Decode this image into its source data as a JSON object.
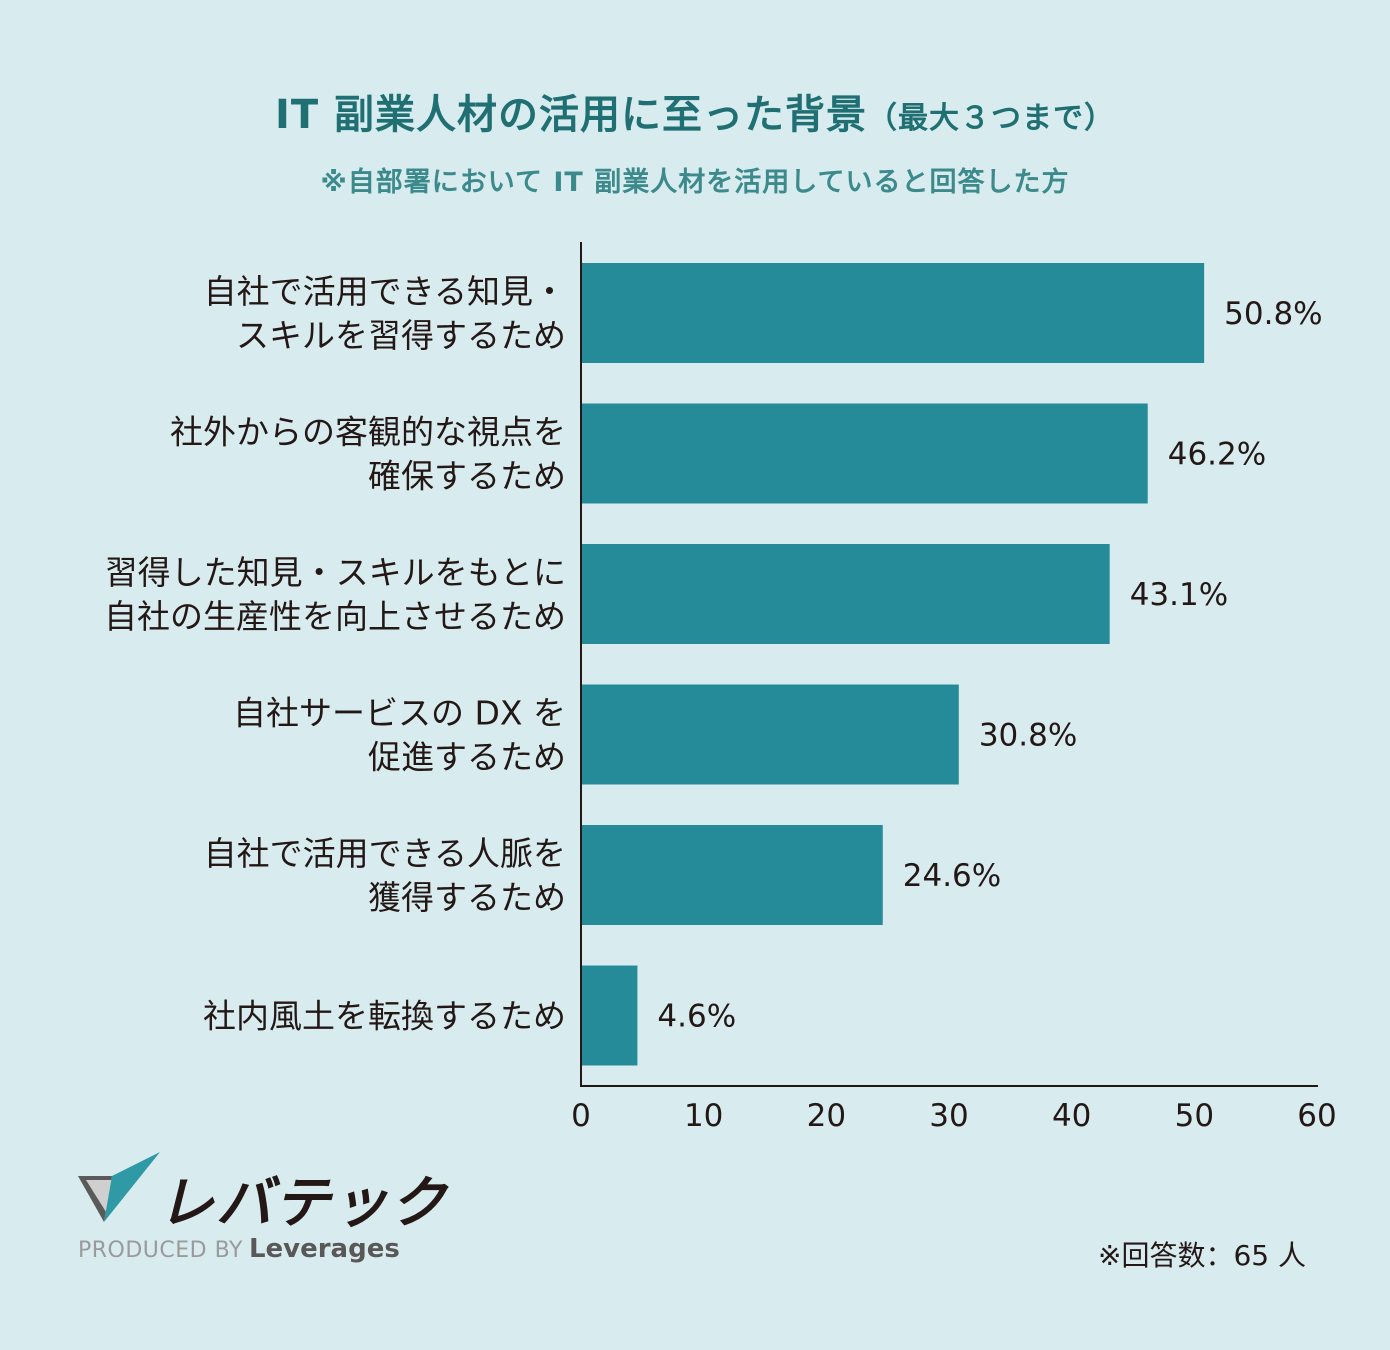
{
  "title": {
    "main": "IT 副業人材の活用に至った背景",
    "suffix": "（最大３つまで）",
    "subtitle": "※自部署において IT 副業人材を活用していると回答した方"
  },
  "chart_data": {
    "type": "bar",
    "orientation": "horizontal",
    "categories": [
      [
        "自社で活用できる知見・",
        "スキルを習得するため"
      ],
      [
        "社外からの客観的な視点を",
        "確保するため"
      ],
      [
        "習得した知見・スキルをもとに",
        "自社の生産性を向上させるため"
      ],
      [
        "自社サービスの DX を",
        "促進するため"
      ],
      [
        "自社で活用できる人脈を",
        "獲得するため"
      ],
      [
        "社内風土を転換するため"
      ]
    ],
    "values": [
      50.8,
      46.2,
      43.1,
      30.8,
      24.6,
      4.6
    ],
    "value_labels": [
      "50.8%",
      "46.2%",
      "43.1%",
      "30.8%",
      "24.6%",
      "4.6%"
    ],
    "xlim": [
      0,
      60
    ],
    "xticks": [
      0,
      10,
      20,
      30,
      40,
      50,
      60
    ],
    "bar_color": "#268b99",
    "grid": false
  },
  "brand": {
    "logo_text": "レバテック",
    "produced_by": "PRODUCED BY",
    "company": "Leverages"
  },
  "footnote": "※回答数：65 人"
}
